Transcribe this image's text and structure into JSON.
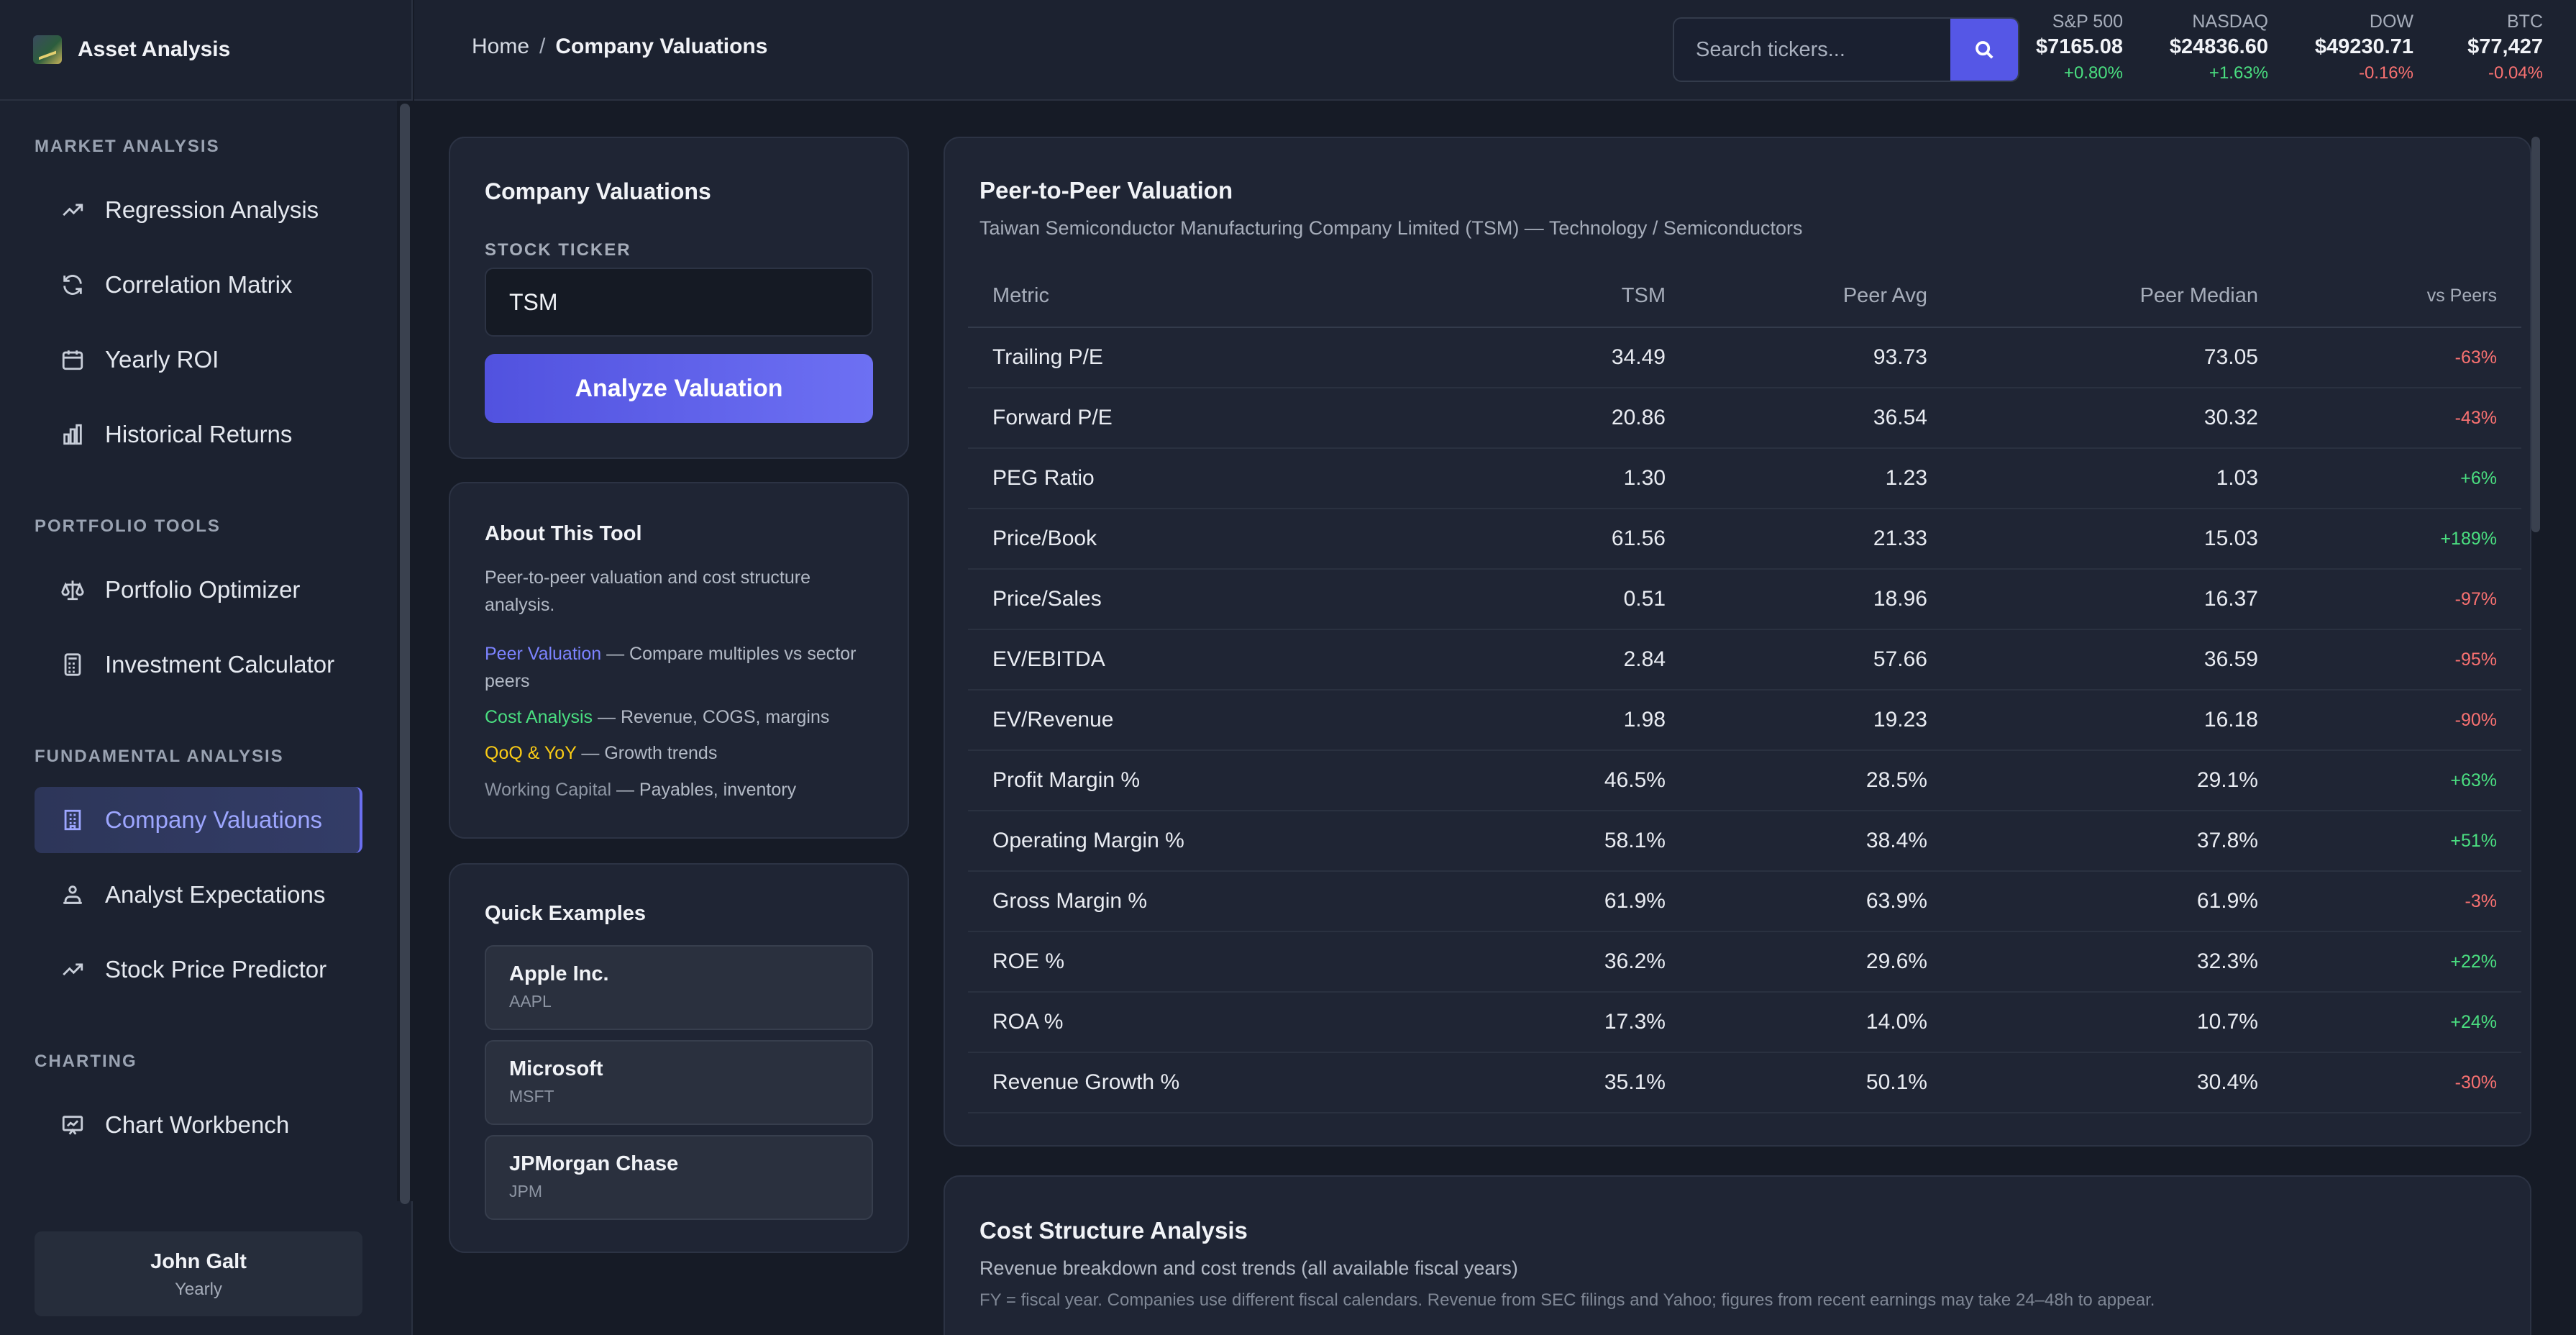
{
  "app": {
    "title": "Asset Analysis"
  },
  "sidebar": {
    "sections": [
      {
        "title": "MARKET ANALYSIS",
        "items": [
          {
            "label": "Regression Analysis",
            "icon": "trending-up-icon"
          },
          {
            "label": "Correlation Matrix",
            "icon": "refresh-icon"
          },
          {
            "label": "Yearly ROI",
            "icon": "calendar-icon"
          },
          {
            "label": "Historical Returns",
            "icon": "bar-chart-icon"
          }
        ]
      },
      {
        "title": "PORTFOLIO TOOLS",
        "items": [
          {
            "label": "Portfolio Optimizer",
            "icon": "scale-icon"
          },
          {
            "label": "Investment Calculator",
            "icon": "calculator-icon"
          }
        ]
      },
      {
        "title": "FUNDAMENTAL ANALYSIS",
        "items": [
          {
            "label": "Company Valuations",
            "icon": "building-icon",
            "active": true
          },
          {
            "label": "Analyst Expectations",
            "icon": "analyst-icon"
          },
          {
            "label": "Stock Price Predictor",
            "icon": "trending-up-icon"
          }
        ]
      },
      {
        "title": "CHARTING",
        "items": [
          {
            "label": "Chart Workbench",
            "icon": "chart-board-icon"
          }
        ]
      }
    ],
    "user": {
      "name": "John Galt",
      "plan": "Yearly"
    }
  },
  "header": {
    "breadcrumb": {
      "home": "Home",
      "separator": "/",
      "current": "Company Valuations"
    },
    "search": {
      "placeholder": "Search tickers..."
    },
    "tickers": [
      {
        "name": "S&P 500",
        "price": "$7165.08",
        "change": "+0.80%",
        "direction": "up"
      },
      {
        "name": "NASDAQ",
        "price": "$24836.60",
        "change": "+1.63%",
        "direction": "up"
      },
      {
        "name": "DOW",
        "price": "$49230.71",
        "change": "-0.16%",
        "direction": "down"
      },
      {
        "name": "BTC",
        "price": "$77,427",
        "change": "-0.04%",
        "direction": "down"
      }
    ]
  },
  "valuation_form": {
    "title": "Company Valuations",
    "ticker_label": "STOCK TICKER",
    "ticker_value": "TSM",
    "button_label": "Analyze Valuation"
  },
  "about": {
    "title": "About This Tool",
    "description": "Peer-to-peer valuation and cost structure analysis.",
    "features": [
      {
        "name": "Peer Valuation",
        "desc": " — Compare multiples vs sector peers",
        "color": "#7c83ff"
      },
      {
        "name": "Cost Analysis",
        "desc": " — Revenue, COGS, margins",
        "color": "#4ade80"
      },
      {
        "name": "QoQ & YoY",
        "desc": " — Growth trends",
        "color": "#facc15"
      },
      {
        "name": "Working Capital",
        "desc": " — Payables, inventory",
        "color": "#8d95a3"
      }
    ]
  },
  "examples": {
    "title": "Quick Examples",
    "items": [
      {
        "name": "Apple Inc.",
        "ticker": "AAPL"
      },
      {
        "name": "Microsoft",
        "ticker": "MSFT"
      },
      {
        "name": "JPMorgan Chase",
        "ticker": "JPM"
      }
    ]
  },
  "peer_valuation": {
    "title": "Peer-to-Peer Valuation",
    "subtitle": "Taiwan Semiconductor Manufacturing Company Limited (TSM) — Technology / Semiconductors",
    "columns": [
      "Metric",
      "TSM",
      "Peer Avg",
      "Peer Median",
      "vs Peers"
    ],
    "rows": [
      [
        "Trailing P/E",
        "34.49",
        "93.73",
        "73.05",
        "-63%"
      ],
      [
        "Forward P/E",
        "20.86",
        "36.54",
        "30.32",
        "-43%"
      ],
      [
        "PEG Ratio",
        "1.30",
        "1.23",
        "1.03",
        "+6%"
      ],
      [
        "Price/Book",
        "61.56",
        "21.33",
        "15.03",
        "+189%"
      ],
      [
        "Price/Sales",
        "0.51",
        "18.96",
        "16.37",
        "-97%"
      ],
      [
        "EV/EBITDA",
        "2.84",
        "57.66",
        "36.59",
        "-95%"
      ],
      [
        "EV/Revenue",
        "1.98",
        "19.23",
        "16.18",
        "-90%"
      ],
      [
        "Profit Margin %",
        "46.5%",
        "28.5%",
        "29.1%",
        "+63%"
      ],
      [
        "Operating Margin %",
        "58.1%",
        "38.4%",
        "37.8%",
        "+51%"
      ],
      [
        "Gross Margin %",
        "61.9%",
        "63.9%",
        "61.9%",
        "-3%"
      ],
      [
        "ROE %",
        "36.2%",
        "29.6%",
        "32.3%",
        "+22%"
      ],
      [
        "ROA %",
        "17.3%",
        "14.0%",
        "10.7%",
        "+24%"
      ],
      [
        "Revenue Growth %",
        "35.1%",
        "50.1%",
        "30.4%",
        "-30%"
      ]
    ]
  },
  "cost_structure": {
    "title": "Cost Structure Analysis",
    "subtitle": "Revenue breakdown and cost trends (all available fiscal years)",
    "note": "FY = fiscal year. Companies use different fiscal calendars. Revenue from SEC filings and Yahoo; figures from recent earnings may take 24–48h to appear."
  },
  "colors": {
    "accent": "#5557e6",
    "positive": "#4ade80",
    "negative": "#f87171"
  }
}
